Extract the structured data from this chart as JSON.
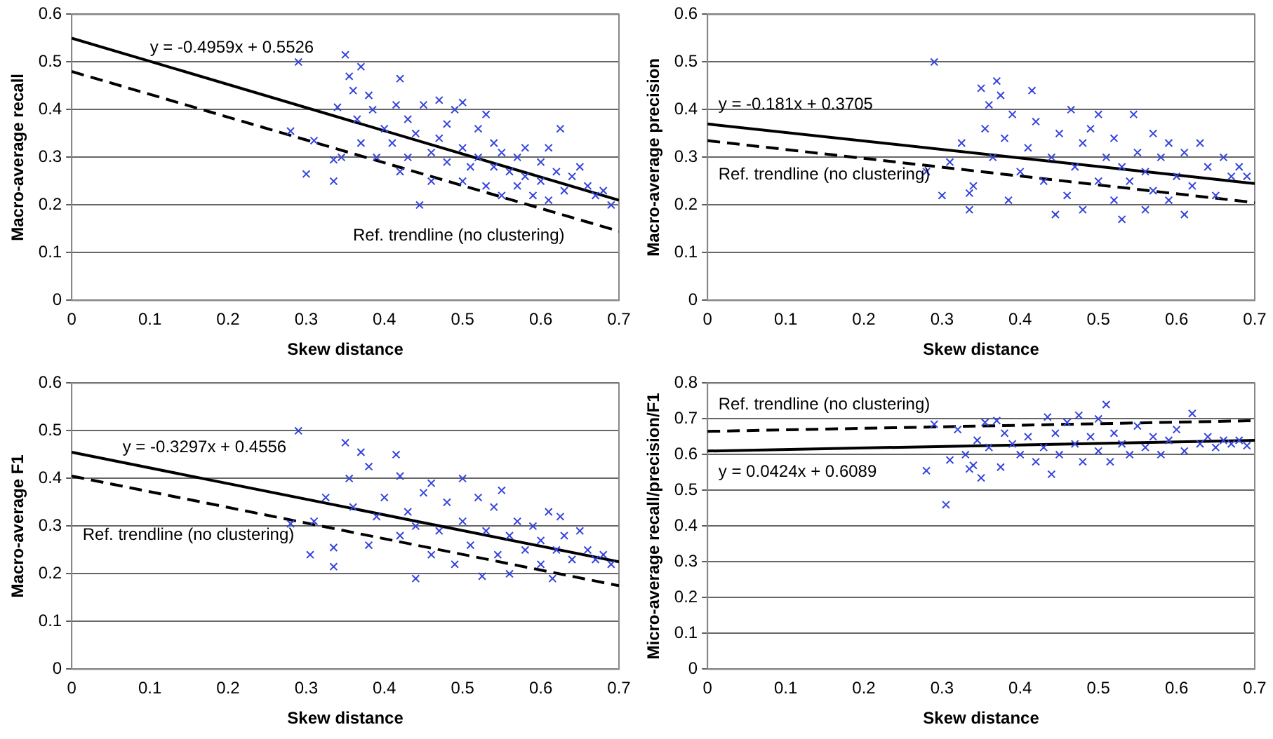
{
  "chart_data": [
    {
      "type": "scatter",
      "xlabel": "Skew distance",
      "ylabel": "Macro-average recall",
      "xlim": [
        0,
        0.7
      ],
      "ylim": [
        0,
        0.6
      ],
      "xticks": [
        0,
        0.1,
        0.2,
        0.3,
        0.4,
        0.5,
        0.6,
        0.7
      ],
      "yticks": [
        0,
        0.1,
        0.2,
        0.3,
        0.4,
        0.5,
        0.6
      ],
      "grid": "y",
      "legend": false,
      "annotations": [
        "y = -0.4959x + 0.5526",
        "Ref. trendline (no clustering)"
      ],
      "series": [
        {
          "type": "scatter",
          "marker": "cross",
          "color": "#3344dd",
          "x": [
            0.29,
            0.28,
            0.3,
            0.31,
            0.335,
            0.335,
            0.34,
            0.345,
            0.35,
            0.355,
            0.36,
            0.37,
            0.365,
            0.37,
            0.38,
            0.385,
            0.39,
            0.4,
            0.41,
            0.415,
            0.42,
            0.42,
            0.43,
            0.43,
            0.44,
            0.445,
            0.45,
            0.46,
            0.46,
            0.47,
            0.47,
            0.48,
            0.48,
            0.49,
            0.5,
            0.5,
            0.5,
            0.51,
            0.52,
            0.52,
            0.53,
            0.53,
            0.54,
            0.54,
            0.55,
            0.55,
            0.56,
            0.57,
            0.57,
            0.58,
            0.58,
            0.59,
            0.6,
            0.6,
            0.61,
            0.61,
            0.62,
            0.625,
            0.63,
            0.64,
            0.65,
            0.66,
            0.67,
            0.68,
            0.69
          ],
          "values": [
            0.5,
            0.355,
            0.265,
            0.335,
            0.25,
            0.295,
            0.405,
            0.3,
            0.515,
            0.47,
            0.44,
            0.49,
            0.38,
            0.33,
            0.43,
            0.4,
            0.3,
            0.36,
            0.33,
            0.41,
            0.465,
            0.27,
            0.38,
            0.3,
            0.35,
            0.2,
            0.41,
            0.31,
            0.25,
            0.42,
            0.34,
            0.29,
            0.37,
            0.4,
            0.415,
            0.32,
            0.25,
            0.28,
            0.36,
            0.3,
            0.39,
            0.24,
            0.33,
            0.28,
            0.31,
            0.22,
            0.27,
            0.3,
            0.24,
            0.32,
            0.26,
            0.22,
            0.29,
            0.25,
            0.32,
            0.21,
            0.27,
            0.36,
            0.23,
            0.26,
            0.28,
            0.24,
            0.22,
            0.23,
            0.2
          ]
        },
        {
          "type": "line",
          "color": "#000000",
          "x": [
            0,
            0.7
          ],
          "values": [
            0.55,
            0.21
          ],
          "line_style": "solid"
        },
        {
          "type": "line",
          "color": "#000000",
          "x": [
            0,
            0.7
          ],
          "values": [
            0.48,
            0.145
          ],
          "line_style": "dashed"
        }
      ]
    },
    {
      "type": "scatter",
      "xlabel": "Skew distance",
      "ylabel": "Macro-average precision",
      "xlim": [
        0,
        0.7
      ],
      "ylim": [
        0,
        0.6
      ],
      "xticks": [
        0,
        0.1,
        0.2,
        0.3,
        0.4,
        0.5,
        0.6,
        0.7
      ],
      "yticks": [
        0,
        0.1,
        0.2,
        0.3,
        0.4,
        0.5,
        0.6
      ],
      "grid": "y",
      "legend": false,
      "annotations": [
        "y = -0.181x + 0.3705",
        "Ref. trendline (no clustering)"
      ],
      "series": [
        {
          "type": "scatter",
          "marker": "cross",
          "color": "#3344dd",
          "x": [
            0.29,
            0.28,
            0.3,
            0.31,
            0.325,
            0.335,
            0.335,
            0.34,
            0.35,
            0.355,
            0.36,
            0.365,
            0.37,
            0.375,
            0.38,
            0.385,
            0.39,
            0.4,
            0.41,
            0.415,
            0.42,
            0.43,
            0.44,
            0.445,
            0.45,
            0.46,
            0.465,
            0.47,
            0.48,
            0.48,
            0.49,
            0.5,
            0.5,
            0.51,
            0.52,
            0.52,
            0.53,
            0.53,
            0.54,
            0.545,
            0.55,
            0.56,
            0.56,
            0.57,
            0.57,
            0.58,
            0.59,
            0.59,
            0.6,
            0.61,
            0.61,
            0.62,
            0.63,
            0.64,
            0.65,
            0.66,
            0.67,
            0.68,
            0.69
          ],
          "values": [
            0.5,
            0.27,
            0.22,
            0.29,
            0.33,
            0.19,
            0.225,
            0.24,
            0.445,
            0.36,
            0.41,
            0.3,
            0.46,
            0.43,
            0.34,
            0.21,
            0.39,
            0.27,
            0.32,
            0.44,
            0.375,
            0.25,
            0.3,
            0.18,
            0.35,
            0.22,
            0.4,
            0.28,
            0.19,
            0.33,
            0.36,
            0.39,
            0.25,
            0.3,
            0.21,
            0.34,
            0.17,
            0.28,
            0.25,
            0.39,
            0.31,
            0.19,
            0.27,
            0.35,
            0.23,
            0.3,
            0.21,
            0.33,
            0.26,
            0.18,
            0.31,
            0.24,
            0.33,
            0.28,
            0.22,
            0.3,
            0.26,
            0.28,
            0.26
          ]
        },
        {
          "type": "line",
          "color": "#000000",
          "x": [
            0,
            0.7
          ],
          "values": [
            0.37,
            0.245
          ],
          "line_style": "solid"
        },
        {
          "type": "line",
          "color": "#000000",
          "x": [
            0,
            0.7
          ],
          "values": [
            0.335,
            0.205
          ],
          "line_style": "dashed"
        }
      ]
    },
    {
      "type": "scatter",
      "xlabel": "Skew distance",
      "ylabel": "Macro-average F1",
      "xlim": [
        0,
        0.7
      ],
      "ylim": [
        0,
        0.6
      ],
      "xticks": [
        0,
        0.1,
        0.2,
        0.3,
        0.4,
        0.5,
        0.6,
        0.7
      ],
      "yticks": [
        0,
        0.1,
        0.2,
        0.3,
        0.4,
        0.5,
        0.6
      ],
      "grid": "y",
      "legend": false,
      "annotations": [
        "y = -0.3297x + 0.4556",
        "Ref. trendline (no clustering)"
      ],
      "series": [
        {
          "type": "scatter",
          "marker": "cross",
          "color": "#3344dd",
          "x": [
            0.29,
            0.28,
            0.305,
            0.31,
            0.325,
            0.335,
            0.335,
            0.35,
            0.355,
            0.36,
            0.37,
            0.38,
            0.38,
            0.39,
            0.4,
            0.415,
            0.42,
            0.42,
            0.43,
            0.44,
            0.44,
            0.45,
            0.46,
            0.46,
            0.47,
            0.48,
            0.49,
            0.5,
            0.5,
            0.51,
            0.52,
            0.525,
            0.53,
            0.54,
            0.545,
            0.55,
            0.56,
            0.56,
            0.57,
            0.58,
            0.59,
            0.6,
            0.6,
            0.61,
            0.615,
            0.62,
            0.625,
            0.63,
            0.64,
            0.65,
            0.66,
            0.67,
            0.68,
            0.69
          ],
          "values": [
            0.5,
            0.305,
            0.24,
            0.31,
            0.36,
            0.215,
            0.255,
            0.475,
            0.4,
            0.34,
            0.455,
            0.425,
            0.26,
            0.32,
            0.36,
            0.45,
            0.405,
            0.28,
            0.33,
            0.19,
            0.3,
            0.37,
            0.39,
            0.24,
            0.29,
            0.35,
            0.22,
            0.4,
            0.31,
            0.26,
            0.36,
            0.195,
            0.29,
            0.34,
            0.24,
            0.375,
            0.28,
            0.2,
            0.31,
            0.25,
            0.3,
            0.22,
            0.27,
            0.33,
            0.19,
            0.25,
            0.32,
            0.28,
            0.23,
            0.29,
            0.25,
            0.23,
            0.24,
            0.22
          ]
        },
        {
          "type": "line",
          "color": "#000000",
          "x": [
            0,
            0.7
          ],
          "values": [
            0.455,
            0.225
          ],
          "line_style": "solid"
        },
        {
          "type": "line",
          "color": "#000000",
          "x": [
            0,
            0.7
          ],
          "values": [
            0.405,
            0.175
          ],
          "line_style": "dashed"
        }
      ]
    },
    {
      "type": "scatter",
      "xlabel": "Skew distance",
      "ylabel": "Micro-average recall/precision/F1",
      "xlim": [
        0,
        0.7
      ],
      "ylim": [
        0,
        0.8
      ],
      "xticks": [
        0,
        0.1,
        0.2,
        0.3,
        0.4,
        0.5,
        0.6,
        0.7
      ],
      "yticks": [
        0,
        0.1,
        0.2,
        0.3,
        0.4,
        0.5,
        0.6,
        0.7,
        0.8
      ],
      "grid": "y",
      "legend": false,
      "annotations": [
        "Ref. trendline (no clustering)",
        "y = 0.0424x + 0.6089"
      ],
      "series": [
        {
          "type": "scatter",
          "marker": "cross",
          "color": "#3344dd",
          "x": [
            0.28,
            0.29,
            0.305,
            0.31,
            0.32,
            0.33,
            0.335,
            0.34,
            0.345,
            0.35,
            0.355,
            0.36,
            0.37,
            0.375,
            0.38,
            0.39,
            0.4,
            0.41,
            0.42,
            0.43,
            0.435,
            0.44,
            0.445,
            0.45,
            0.46,
            0.47,
            0.475,
            0.48,
            0.49,
            0.5,
            0.5,
            0.51,
            0.515,
            0.52,
            0.53,
            0.54,
            0.55,
            0.56,
            0.57,
            0.58,
            0.59,
            0.6,
            0.61,
            0.62,
            0.63,
            0.64,
            0.65,
            0.66,
            0.67,
            0.68,
            0.69
          ],
          "values": [
            0.555,
            0.685,
            0.46,
            0.585,
            0.67,
            0.6,
            0.56,
            0.57,
            0.64,
            0.535,
            0.69,
            0.62,
            0.695,
            0.565,
            0.66,
            0.63,
            0.6,
            0.65,
            0.58,
            0.62,
            0.705,
            0.545,
            0.66,
            0.6,
            0.69,
            0.63,
            0.71,
            0.58,
            0.65,
            0.7,
            0.61,
            0.74,
            0.58,
            0.66,
            0.63,
            0.6,
            0.68,
            0.62,
            0.65,
            0.6,
            0.64,
            0.67,
            0.61,
            0.715,
            0.63,
            0.65,
            0.62,
            0.64,
            0.63,
            0.64,
            0.625
          ]
        },
        {
          "type": "line",
          "color": "#000000",
          "x": [
            0,
            0.7
          ],
          "values": [
            0.61,
            0.64
          ],
          "line_style": "solid"
        },
        {
          "type": "line",
          "color": "#000000",
          "x": [
            0,
            0.7
          ],
          "values": [
            0.665,
            0.695
          ],
          "line_style": "dashed"
        }
      ]
    }
  ]
}
